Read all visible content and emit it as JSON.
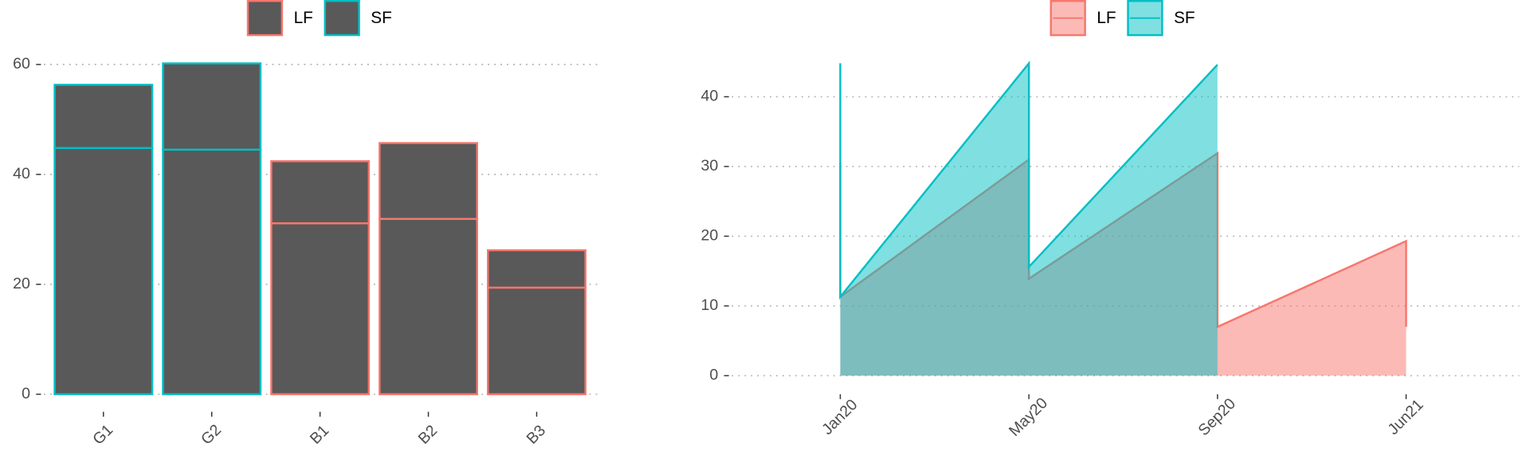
{
  "chart_data": [
    {
      "type": "bar",
      "categories": [
        "G1",
        "G2",
        "B1",
        "B2",
        "B3"
      ],
      "segments": [
        {
          "values": [
            44.8,
            44.5,
            31.1,
            31.9,
            19.4
          ]
        },
        {
          "values": [
            11.5,
            15.7,
            11.3,
            13.8,
            6.8
          ]
        }
      ],
      "fill": "#595959",
      "groups": [
        "SF",
        "SF",
        "LF",
        "LF",
        "LF"
      ],
      "legend": [
        {
          "name": "LF",
          "color": "#f8766d"
        },
        {
          "name": "SF",
          "color": "#00bfc4"
        }
      ],
      "ylim": [
        0,
        62.5
      ],
      "yticks": [
        0,
        20,
        40,
        60
      ],
      "grid": true
    },
    {
      "type": "area",
      "x": [
        -0.575,
        3.6
      ],
      "xlim": [
        -0.575,
        3.6
      ],
      "xticks": [
        {
          "value": 0,
          "label": "Jan20"
        },
        {
          "value": 1,
          "label": "May20"
        },
        {
          "value": 2,
          "label": "Sep20"
        },
        {
          "value": 3,
          "label": "Jun21"
        }
      ],
      "series": [
        {
          "name": "LF",
          "color": "#f8766d",
          "x": [
            0,
            0,
            1,
            1,
            2,
            2,
            3,
            3
          ],
          "values": [
            30.5,
            11.3,
            31.0,
            13.9,
            31.9,
            7.0,
            19.3,
            7.0
          ]
        },
        {
          "name": "SF",
          "color": "#00bfc4",
          "x": [
            0,
            0,
            1,
            1,
            2
          ],
          "values": [
            44.8,
            11.3,
            44.8,
            15.6,
            44.6
          ]
        }
      ],
      "ylim": [
        -2.66,
        46.6
      ],
      "yticks": [
        0,
        10,
        20,
        30,
        40
      ],
      "grid": true
    }
  ]
}
